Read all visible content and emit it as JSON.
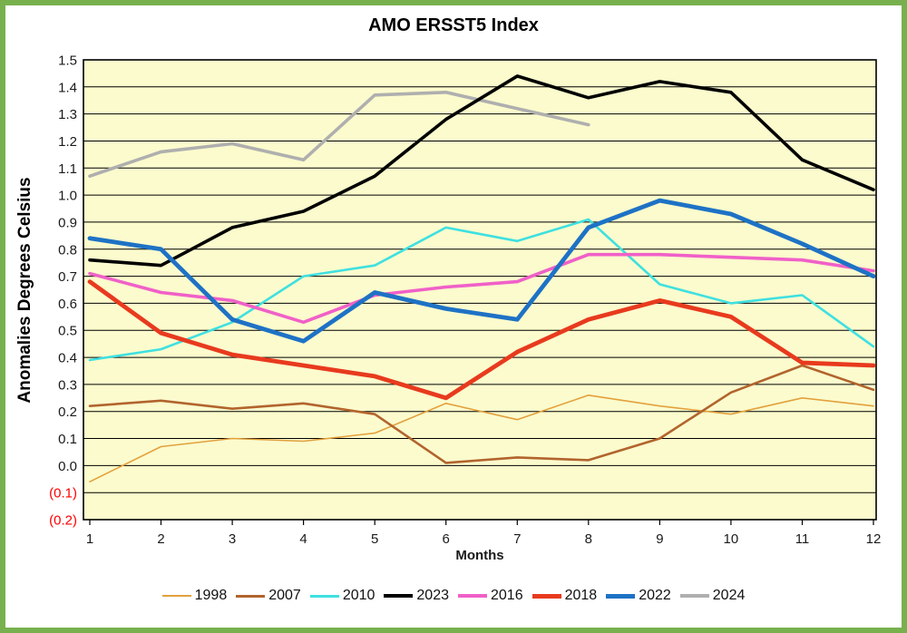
{
  "frame": {
    "border_color": "#77B04D",
    "background_color": "#FFFFFF"
  },
  "chart_data": {
    "type": "line",
    "title": "AMO ERSST5 Index",
    "xlabel": "Months",
    "ylabel": "Anomalies Degrees Celsius",
    "plot_background": "#FBFBCD",
    "grid": true,
    "gridline_color": "#000000",
    "axis_text_color": "#1A1A1A",
    "negative_label_color": "#FF0000",
    "negative_label_format": "parentheses",
    "legend_position": "bottom",
    "x": [
      1,
      2,
      3,
      4,
      5,
      6,
      7,
      8,
      9,
      10,
      11,
      12
    ],
    "ylim": [
      -0.2,
      1.5
    ],
    "ytick_step": 0.1,
    "series": [
      {
        "name": "1998",
        "color": "#E3A13D",
        "width": 1.6,
        "values": [
          -0.06,
          0.07,
          0.1,
          0.09,
          0.12,
          0.23,
          0.17,
          0.26,
          0.22,
          0.19,
          0.25,
          0.22
        ]
      },
      {
        "name": "2007",
        "color": "#B2642D",
        "width": 2.6,
        "values": [
          0.22,
          0.24,
          0.21,
          0.23,
          0.19,
          0.01,
          0.03,
          0.02,
          0.1,
          0.27,
          0.37,
          0.28
        ]
      },
      {
        "name": "2010",
        "color": "#3FE0E0",
        "width": 2.6,
        "values": [
          0.39,
          0.43,
          0.53,
          0.7,
          0.74,
          0.88,
          0.83,
          0.91,
          0.67,
          0.6,
          0.63,
          0.44
        ]
      },
      {
        "name": "2023",
        "color": "#000000",
        "width": 3.6,
        "values": [
          0.76,
          0.74,
          0.88,
          0.94,
          1.07,
          1.28,
          1.44,
          1.36,
          1.42,
          1.38,
          1.13,
          1.02
        ]
      },
      {
        "name": "2016",
        "color": "#F060C8",
        "width": 3.6,
        "values": [
          0.71,
          0.64,
          0.61,
          0.53,
          0.63,
          0.66,
          0.68,
          0.78,
          0.78,
          0.77,
          0.76,
          0.72
        ]
      },
      {
        "name": "2018",
        "color": "#E83A1E",
        "width": 4.8,
        "values": [
          0.68,
          0.49,
          0.41,
          0.37,
          0.33,
          0.25,
          0.42,
          0.54,
          0.61,
          0.55,
          0.38,
          0.37
        ]
      },
      {
        "name": "2022",
        "color": "#1E72C5",
        "width": 4.8,
        "values": [
          0.84,
          0.8,
          0.54,
          0.46,
          0.64,
          0.58,
          0.54,
          0.88,
          0.98,
          0.93,
          0.82,
          0.7
        ]
      },
      {
        "name": "2024",
        "color": "#AFAFAF",
        "width": 3.6,
        "values": [
          1.07,
          1.16,
          1.19,
          1.13,
          1.37,
          1.38,
          1.32,
          1.26,
          null,
          null,
          null,
          null
        ]
      }
    ],
    "draw_order": [
      "1998",
      "2007",
      "2010",
      "2024",
      "2023",
      "2016",
      "2018",
      "2022"
    ]
  }
}
